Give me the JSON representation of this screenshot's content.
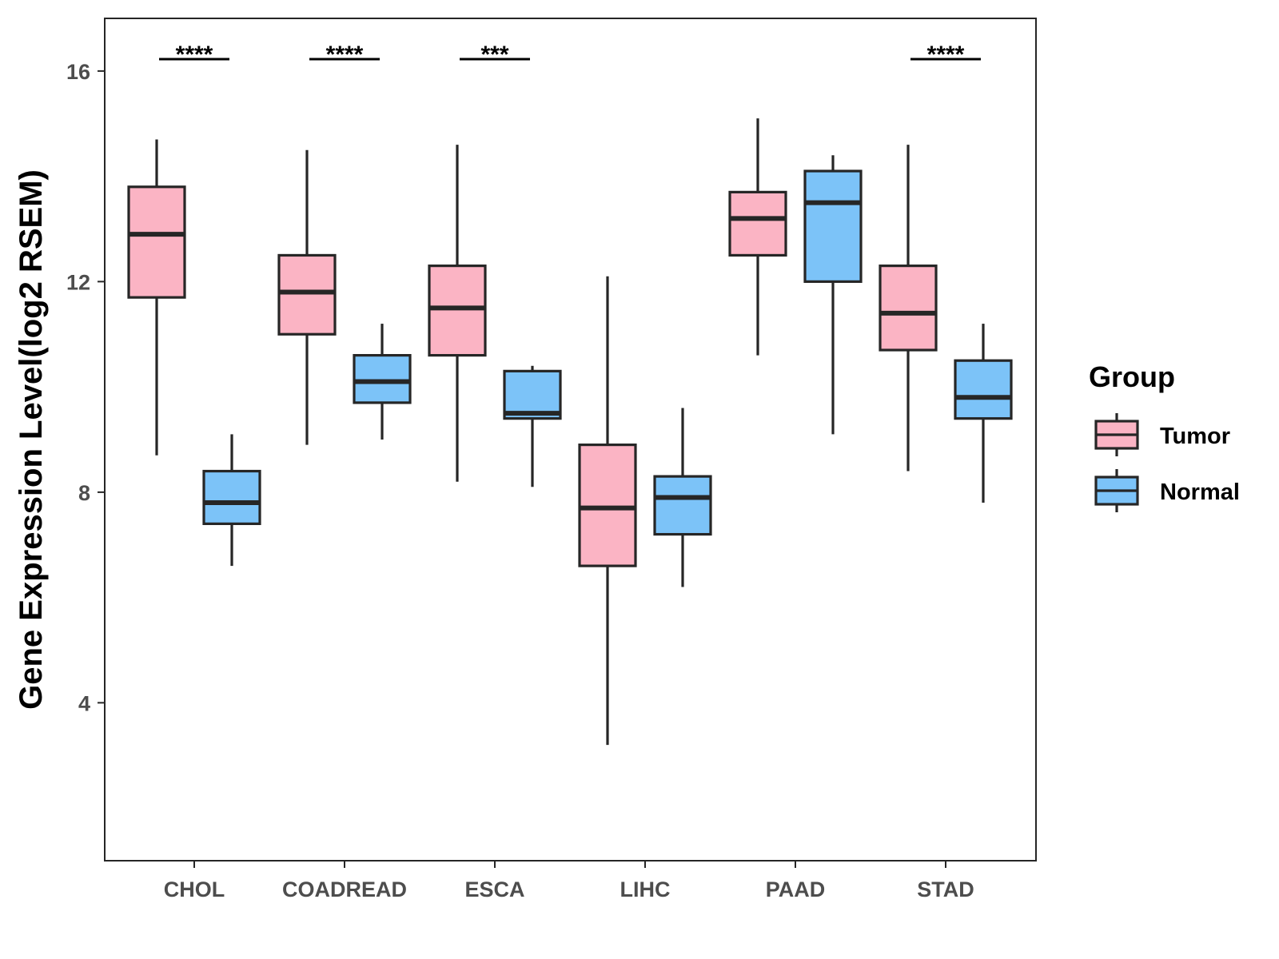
{
  "chart_data": {
    "type": "boxplot",
    "title": "",
    "xlabel": "",
    "ylabel": "Gene Expression Level(log2 RSEM)",
    "ylim": [
      1,
      17
    ],
    "yticks": [
      4,
      8,
      12,
      16
    ],
    "categories": [
      "CHOL",
      "COADREAD",
      "ESCA",
      "LIHC",
      "PAAD",
      "STAD"
    ],
    "legend": {
      "title": "Group",
      "position": "right"
    },
    "series": [
      {
        "name": "Tumor",
        "color": "#FBB4C4",
        "boxes": [
          {
            "min": 8.7,
            "q1": 11.7,
            "median": 12.9,
            "q3": 13.8,
            "max": 14.7
          },
          {
            "min": 8.9,
            "q1": 11.0,
            "median": 11.8,
            "q3": 12.5,
            "max": 14.5
          },
          {
            "min": 8.2,
            "q1": 10.6,
            "median": 11.5,
            "q3": 12.3,
            "max": 14.6
          },
          {
            "min": 3.2,
            "q1": 6.6,
            "median": 7.7,
            "q3": 8.9,
            "max": 12.1
          },
          {
            "min": 10.6,
            "q1": 12.5,
            "median": 13.2,
            "q3": 13.7,
            "max": 15.1
          },
          {
            "min": 8.4,
            "q1": 10.7,
            "median": 11.4,
            "q3": 12.3,
            "max": 14.6
          }
        ]
      },
      {
        "name": "Normal",
        "color": "#7CC3F8",
        "boxes": [
          {
            "min": 6.6,
            "q1": 7.4,
            "median": 7.8,
            "q3": 8.4,
            "max": 9.1
          },
          {
            "min": 9.0,
            "q1": 9.7,
            "median": 10.1,
            "q3": 10.6,
            "max": 11.2
          },
          {
            "min": 8.1,
            "q1": 9.4,
            "median": 9.5,
            "q3": 10.3,
            "max": 10.4
          },
          {
            "min": 6.2,
            "q1": 7.2,
            "median": 7.9,
            "q3": 8.3,
            "max": 9.6
          },
          {
            "min": 9.1,
            "q1": 12.0,
            "median": 13.5,
            "q3": 14.1,
            "max": 14.4
          },
          {
            "min": 7.8,
            "q1": 9.4,
            "median": 9.8,
            "q3": 10.5,
            "max": 11.2
          }
        ]
      }
    ],
    "significance": [
      {
        "category": "CHOL",
        "label": "****"
      },
      {
        "category": "COADREAD",
        "label": "****"
      },
      {
        "category": "ESCA",
        "label": "***"
      },
      {
        "category": "STAD",
        "label": "****"
      }
    ],
    "colors": {
      "outline": "#262626",
      "panel_border": "#262626",
      "axis_text": "#4d4d4d"
    }
  }
}
